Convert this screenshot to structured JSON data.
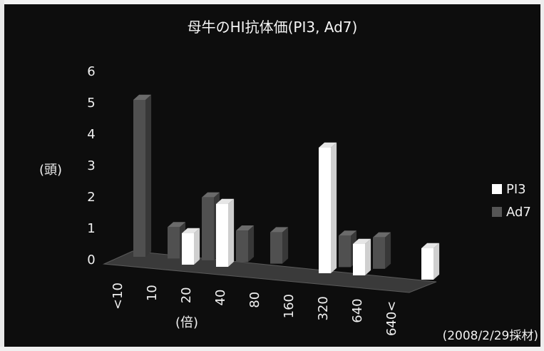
{
  "chart_data": {
    "type": "bar",
    "title": "母牛のHI抗体価(PI3, Ad7)",
    "ylabel": "(頭)",
    "xlabel": "(倍)",
    "note": "(2008/2/29採材)",
    "categories": [
      "<10",
      "10",
      "20",
      "40",
      "80",
      "160",
      "320",
      "640",
      "640<"
    ],
    "ylim": [
      0,
      6
    ],
    "yticks": [
      "0",
      "1",
      "2",
      "3",
      "4",
      "5",
      "6"
    ],
    "series": [
      {
        "name": "PI3",
        "values": [
          0,
          1,
          2,
          0,
          0,
          4,
          1,
          0,
          1
        ],
        "color": "#ffffff"
      },
      {
        "name": "Ad7",
        "values": [
          5,
          1,
          2,
          1,
          1,
          0,
          1,
          1,
          0
        ],
        "color": "#555555"
      }
    ],
    "legend_position": "right",
    "style": "3d-column"
  }
}
